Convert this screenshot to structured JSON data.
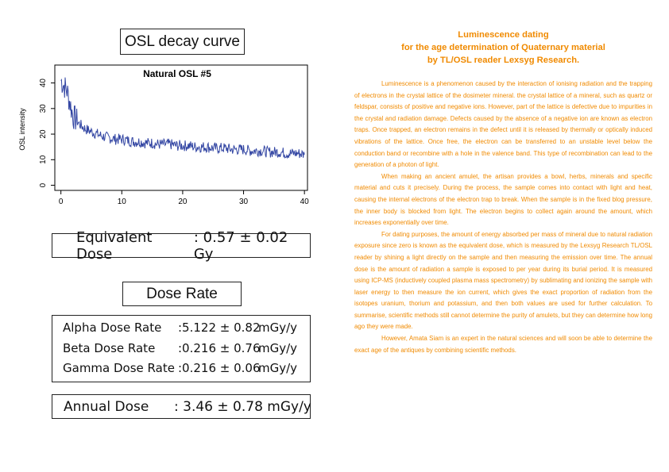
{
  "osl_title": "OSL decay curve",
  "chart_data": {
    "type": "line",
    "title": "Natural OSL #5",
    "xlabel": "",
    "ylabel": "OSL intensity",
    "xlim": [
      -1,
      40.5
    ],
    "ylim": [
      -2,
      47
    ],
    "x_ticks": [
      0,
      10,
      20,
      30,
      40
    ],
    "y_ticks": [
      0,
      10,
      20,
      30,
      40
    ],
    "grid": false,
    "legend": "none",
    "line_color": "#3346a3",
    "series": [
      {
        "x": [
          0,
          1,
          2,
          3,
          4,
          5,
          6,
          7,
          8,
          9,
          10,
          11,
          12,
          13,
          14,
          15,
          16,
          17,
          18,
          19,
          20,
          21,
          22,
          23,
          24,
          25,
          26,
          27,
          28,
          29,
          30,
          31,
          32,
          33,
          34,
          35,
          36,
          37,
          38,
          39,
          40
        ],
        "values": [
          41,
          37,
          27,
          24,
          22,
          21,
          20,
          19,
          18.5,
          18,
          18,
          17.5,
          17,
          17,
          16.5,
          16.5,
          16,
          16,
          16,
          15.5,
          15.5,
          15.5,
          15,
          15,
          15,
          14.5,
          14.5,
          14.5,
          14,
          14,
          14,
          13.5,
          13.5,
          13.5,
          13,
          13,
          13,
          12.5,
          12.5,
          12.5,
          12
        ]
      }
    ]
  },
  "equivalent_dose": {
    "label": "Equivalent Dose",
    "value": ": 0.57 ± 0.02 Gy"
  },
  "dose_rate_title": "Dose Rate",
  "dose_rates": [
    {
      "label": "Alpha Dose Rate",
      "value": ":5.122 ± 0.82",
      "unit": "mGy/y"
    },
    {
      "label": "Beta Dose Rate",
      "value": ":0.216 ± 0.76",
      "unit": "mGy/y"
    },
    {
      "label": "Gamma Dose Rate",
      "value": ":0.216 ± 0.06",
      "unit": "mGy/y"
    }
  ],
  "annual_dose": {
    "label": "Annual Dose",
    "value": ": 3.46 ± 0.78 mGy/y"
  },
  "article": {
    "title_lines": [
      "Luminescence dating",
      "for the age determination of Quaternary material",
      "by TL/OSL reader Lexsyg Research."
    ],
    "paragraphs": [
      "Luminescence is a phenomenon caused by the interaction of ionising radiation and the trapping of electrons in the crystal lattice of the dosimeter mineral. the crystal lattice of a mineral, such as quartz or feldspar, consists of positive and negative ions. However, part of the lattice is defective due to impurities in the crystal and radiation damage. Defects caused by the absence of a negative ion are known as electron traps. Once trapped, an electron remains in the defect until it is released by thermally or optically induced vibrations of the lattice. Once free, the electron can be transferred to an unstable level below the conduction band or recombine with a hole in the valence band. This type of recombination can lead to the generation of a photon of light.",
      "When making an ancient amulet, the artisan provides a bowl, herbs, minerals and specific material and cuts it precisely. During the process, the sample comes into contact with light and heat, causing the internal electrons of the electron trap to break. When the sample is in the fixed blog pressure, the inner body is blocked from light. The electron begins to collect again around the amount, which increases exponentially over time.",
      "For dating purposes, the amount of energy absorbed per mass of mineral due to natural radiation exposure since zero is known as the equivalent dose, which is measured by the Lexsyg Research TL/OSL reader by shining a light directly on the sample and then measuring the emission over time. The annual dose is the amount of radiation a sample is exposed to per year during its burial period. It is measured using ICP-MS (inductively coupled plasma mass spectrometry) by sublimating and ionizing the sample with laser energy to then measure the ion current, which gives the exact proportion of radiation from the isotopes uranium, thorium and potassium, and then both values are used for further calculation. To summarise, scientific methods still cannot determine the purity of amulets, but they can determine how long ago they were made.",
      "However, Amata Siam is an expert in the natural sciences and will soon be able to determine the exact age of the antiques by combining scientific methods."
    ]
  }
}
